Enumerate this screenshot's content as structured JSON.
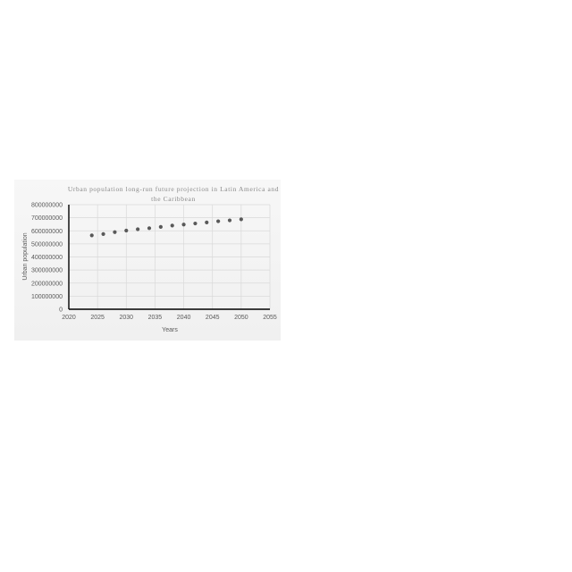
{
  "chart_data": {
    "type": "scatter",
    "title_lines": [
      "Urban population long-run future projection in Latin America and",
      "the Caribbean"
    ],
    "xlabel": "Years",
    "ylabel": "Urban population",
    "xlim": [
      2020,
      2055
    ],
    "ylim": [
      0,
      800000000
    ],
    "x_ticks": [
      "2020",
      "2025",
      "2030",
      "2035",
      "2040",
      "2045",
      "2050",
      "2055"
    ],
    "y_ticks": [
      "0",
      "100000000",
      "200000000",
      "300000000",
      "400000000",
      "500000000",
      "600000000",
      "700000000",
      "800000000"
    ],
    "grid": true,
    "marker_color": "#595959",
    "series": [
      {
        "x": [
          2024,
          2026,
          2028,
          2030,
          2032,
          2034,
          2036,
          2038,
          2040,
          2042,
          2044,
          2046,
          2048,
          2050
        ],
        "y": [
          565000000,
          575000000,
          590000000,
          602000000,
          612000000,
          620000000,
          630000000,
          640000000,
          648000000,
          656000000,
          664000000,
          673000000,
          680000000,
          688000000
        ]
      }
    ]
  }
}
